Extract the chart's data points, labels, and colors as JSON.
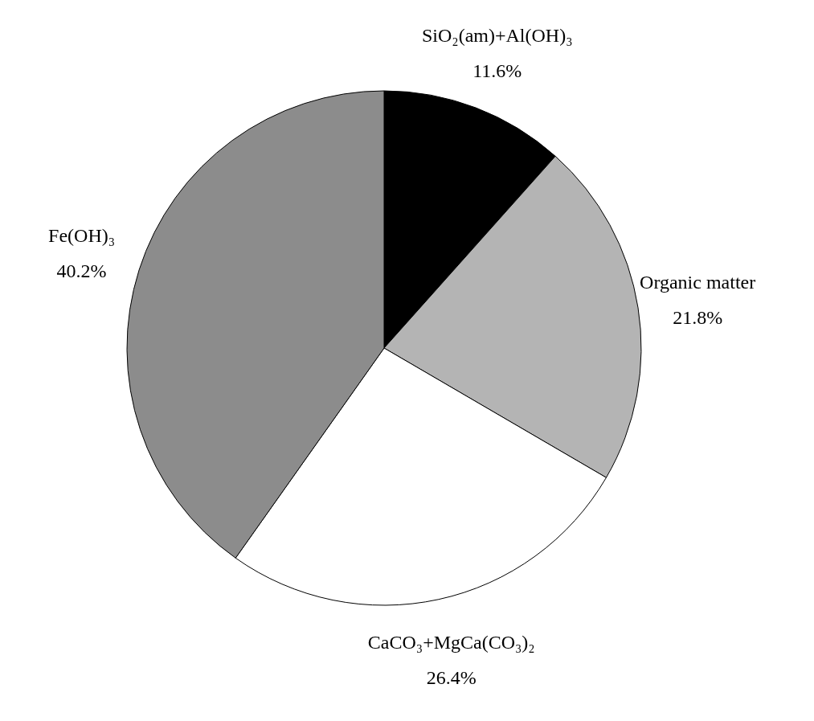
{
  "chart_data": {
    "type": "pie",
    "categories": [
      "SiO₂(am)+Al(OH)₃",
      "Organic matter",
      "CaCO₃+MgCa(CO₃)₂",
      "Fe(OH)₃"
    ],
    "values": [
      11.6,
      21.8,
      26.4,
      40.2
    ],
    "value_labels": [
      "11.6%",
      "21.8%",
      "26.4%",
      "40.2%"
    ],
    "colors": [
      "#000000",
      "#b4b4b4",
      "#ffffff",
      "#8c8c8c"
    ]
  }
}
